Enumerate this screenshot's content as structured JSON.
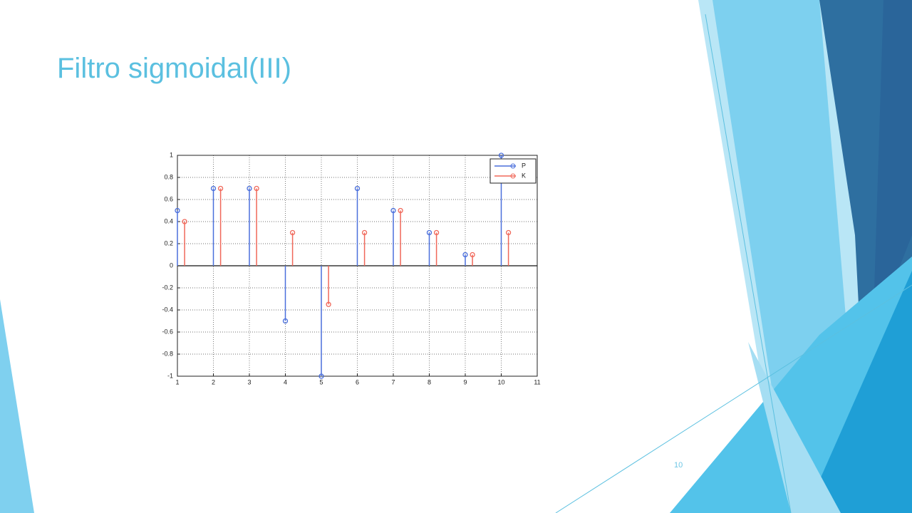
{
  "slide": {
    "title": "Filtro sigmoidal(III)",
    "page_number": "10"
  },
  "chart_data": {
    "type": "stem",
    "series": [
      {
        "name": "P",
        "color": "#4a6fdc",
        "x": [
          1,
          2,
          3,
          4,
          5,
          6,
          7,
          8,
          9,
          10
        ],
        "values": [
          0.5,
          0.7,
          0.7,
          -0.5,
          -1,
          0.7,
          0.5,
          0.3,
          0.1,
          1
        ]
      },
      {
        "name": "K",
        "color": "#f0685a",
        "x": [
          1.2,
          2.2,
          3.2,
          4.2,
          5.2,
          6.2,
          7.2,
          8.2,
          9.2,
          10.2
        ],
        "values": [
          0.4,
          0.7,
          0.7,
          0.3,
          -0.35,
          0.3,
          0.5,
          0.3,
          0.1,
          0.3
        ]
      }
    ],
    "xlim": [
      1,
      11
    ],
    "xticks": [
      1,
      2,
      3,
      4,
      5,
      6,
      7,
      8,
      9,
      10,
      11
    ],
    "ylim": [
      -1,
      1
    ],
    "yticks": [
      -1,
      -0.8,
      -0.6,
      -0.4,
      -0.2,
      0,
      0.2,
      0.4,
      0.6,
      0.8,
      1
    ],
    "grid": true,
    "legend": "upper right"
  }
}
